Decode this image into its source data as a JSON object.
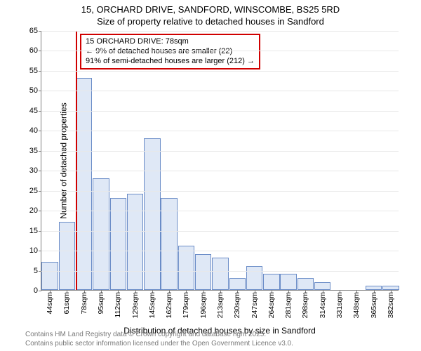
{
  "titles": {
    "line1": "15, ORCHARD DRIVE, SANDFORD, WINSCOMBE, BS25 5RD",
    "line2": "Size of property relative to detached houses in Sandford"
  },
  "chart": {
    "type": "histogram",
    "yaxis": {
      "label": "Number of detached properties",
      "min": 0,
      "max": 65,
      "step": 5,
      "label_fontsize": 12,
      "tick_fontsize": 11
    },
    "xaxis": {
      "label": "Distribution of detached houses by size in Sandford",
      "labels": [
        "44sqm",
        "61sqm",
        "78sqm",
        "95sqm",
        "112sqm",
        "129sqm",
        "145sqm",
        "162sqm",
        "179sqm",
        "196sqm",
        "213sqm",
        "230sqm",
        "247sqm",
        "264sqm",
        "281sqm",
        "298sqm",
        "314sqm",
        "331sqm",
        "348sqm",
        "365sqm",
        "382sqm"
      ],
      "label_fontsize": 12,
      "tick_fontsize": 10.5
    },
    "bars": {
      "values": [
        7,
        17,
        53,
        28,
        23,
        24,
        38,
        23,
        11,
        9,
        8,
        3,
        6,
        4,
        4,
        3,
        2,
        0,
        0,
        1,
        1
      ],
      "fill_color": "#dfe8f6",
      "border_color": "#6a8cc7",
      "width_frac": 0.96
    },
    "marker": {
      "x_index": 2,
      "color": "#d00000"
    },
    "annotation": {
      "line1": "15 ORCHARD DRIVE: 78sqm",
      "line2": "← 9% of detached houses are smaller (22)",
      "line3": "91% of semi-detached houses are larger (212) →",
      "border_color": "#d00000",
      "text_color": "#000000",
      "fontsize": 11
    },
    "grid_color": "#e8e8e8",
    "axis_color": "#808080",
    "background": "#ffffff"
  },
  "footer": {
    "line1": "Contains HM Land Registry data © Crown copyright and database right 2025.",
    "line2": "Contains public sector information licensed under the Open Government Licence v3.0.",
    "color": "#7a7a7a",
    "fontsize": 10
  }
}
